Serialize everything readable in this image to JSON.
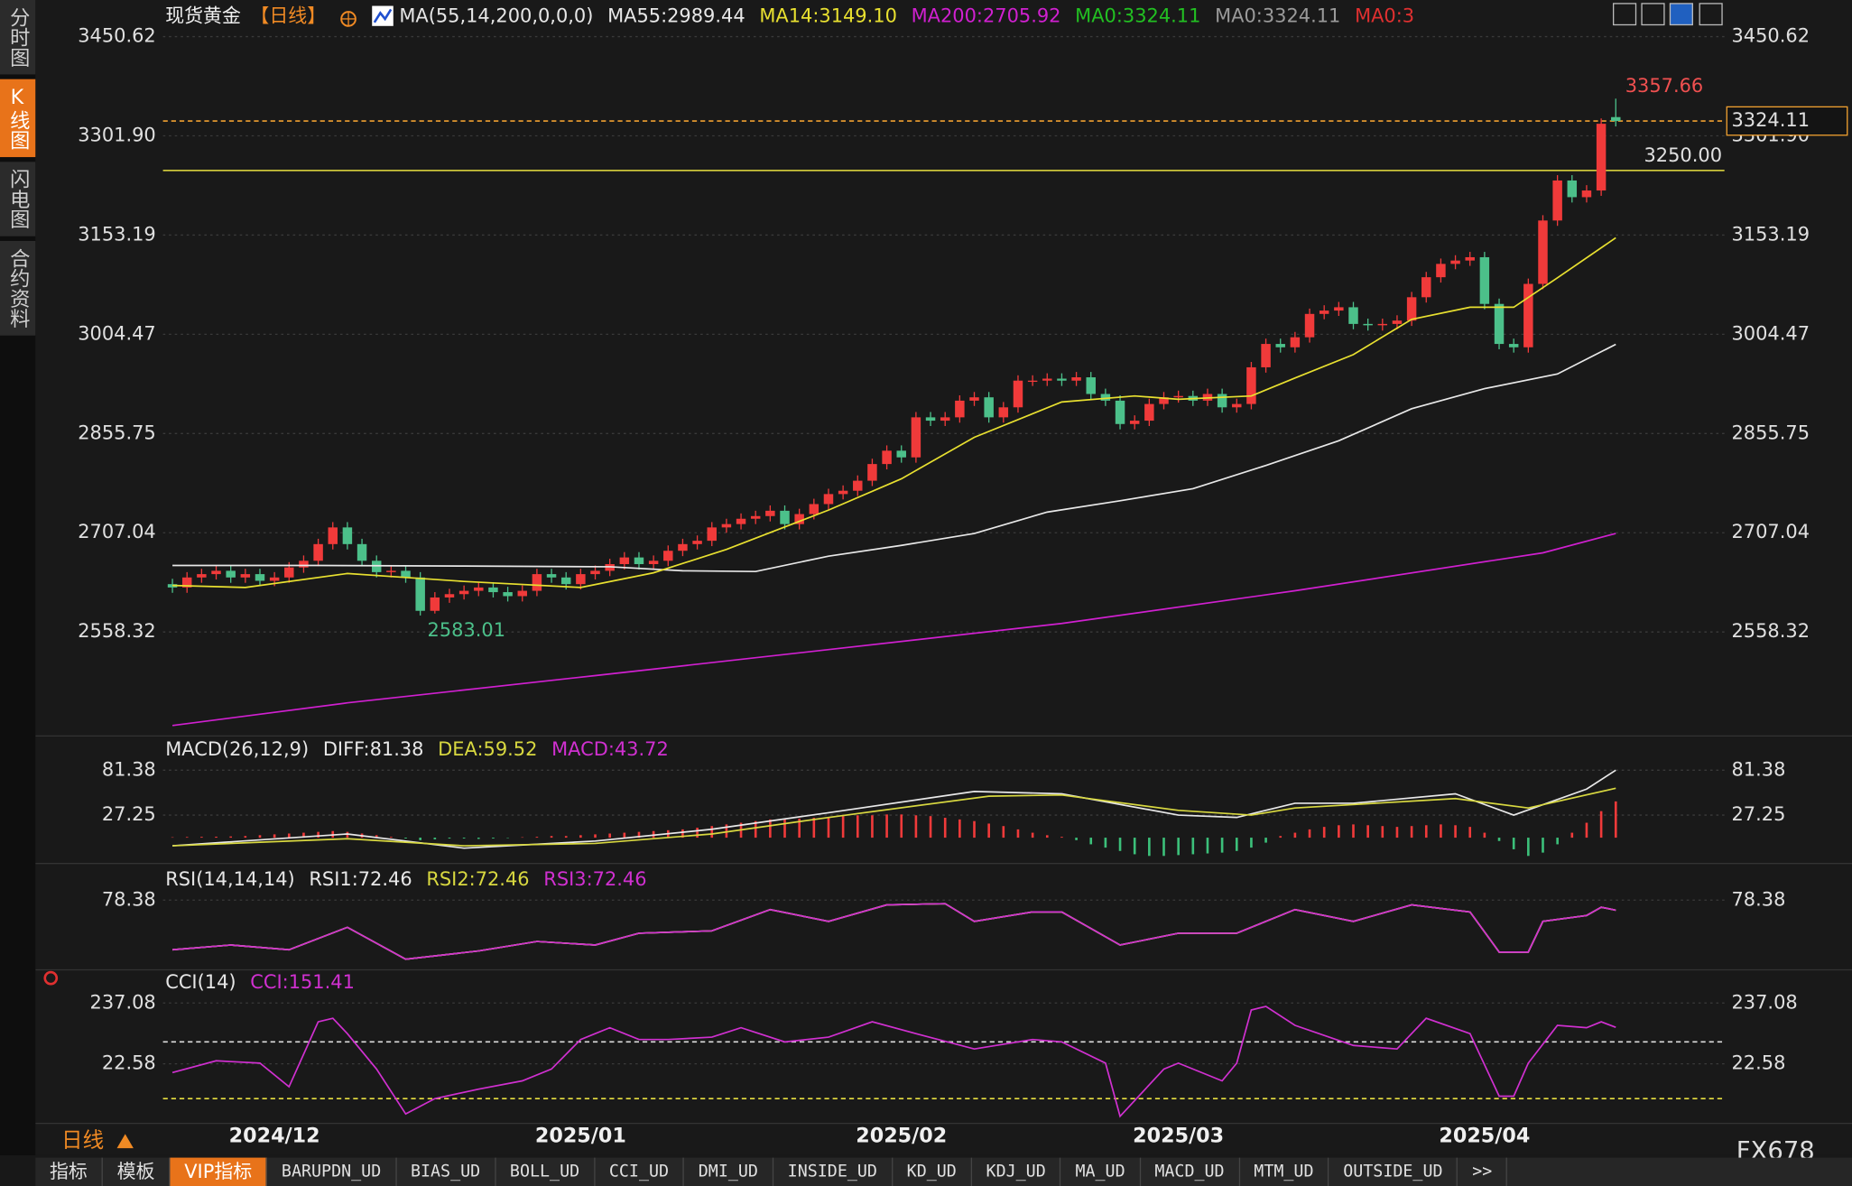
{
  "sidebar": {
    "tabs": [
      "分时图",
      "K线图",
      "闪电图",
      "合约资料"
    ],
    "selected": 1
  },
  "footer": {
    "period": "日线",
    "tabs": [
      "指标",
      "模板",
      "VIP指标",
      "BARUPDN_UD",
      "BIAS_UD",
      "BOLL_UD",
      "CCI_UD",
      "DMI_UD",
      "INSIDE_UD",
      "KD_UD",
      "KDJ_UD",
      "MA_UD",
      "MACD_UD",
      "MTM_UD",
      "OUTSIDE_UD",
      ">>"
    ],
    "selected": 2,
    "brand": "FX678"
  },
  "chart_data": [
    {
      "type": "candlestick",
      "title": "现货黄金",
      "period": "【日线】",
      "indicator": "MA(55,14,200,0,0,0)",
      "categories": [
        null,
        null,
        null,
        null,
        null,
        null,
        null,
        "2024/12",
        null,
        null,
        null,
        null,
        null,
        null,
        null,
        null,
        null,
        null,
        null,
        null,
        null,
        null,
        null,
        null,
        null,
        null,
        null,
        null,
        "2025/01",
        null,
        null,
        null,
        null,
        null,
        null,
        null,
        null,
        null,
        null,
        null,
        null,
        null,
        null,
        null,
        null,
        null,
        null,
        null,
        null,
        null,
        "2025/02",
        null,
        null,
        null,
        null,
        null,
        null,
        null,
        null,
        null,
        null,
        null,
        null,
        null,
        null,
        null,
        null,
        null,
        null,
        "2025/03",
        null,
        null,
        null,
        null,
        null,
        null,
        null,
        null,
        null,
        null,
        null,
        null,
        null,
        null,
        null,
        null,
        null,
        null,
        null,
        null,
        "2025/04",
        null,
        null,
        null,
        null,
        null,
        null,
        null,
        null,
        null
      ],
      "open": [
        2630,
        2625,
        2640,
        2645,
        2650,
        2640,
        2645,
        2635,
        2640,
        2655,
        2665,
        2690,
        2715,
        2690,
        2665,
        2648,
        2650,
        2640,
        2590,
        2610,
        2615,
        2620,
        2625,
        2618,
        2612,
        2620,
        2645,
        2640,
        2630,
        2645,
        2650,
        2660,
        2670,
        2660,
        2665,
        2680,
        2690,
        2695,
        2715,
        2720,
        2728,
        2732,
        2740,
        2720,
        2735,
        2750,
        2765,
        2770,
        2785,
        2810,
        2830,
        2820,
        2880,
        2875,
        2880,
        2905,
        2910,
        2880,
        2895,
        2935,
        2935,
        2938,
        2935,
        2940,
        2915,
        2905,
        2870,
        2875,
        2900,
        2910,
        2912,
        2905,
        2915,
        2895,
        2900,
        2955,
        2990,
        2985,
        3000,
        3035,
        3040,
        3045,
        3020,
        3018,
        3020,
        3025,
        3060,
        3090,
        3110,
        3115,
        3120,
        3050,
        2990,
        2985,
        3080,
        3175,
        3235,
        3210,
        3220,
        3330
      ],
      "high": [
        2638,
        2648,
        2653,
        2658,
        2658,
        2653,
        2653,
        2648,
        2663,
        2673,
        2698,
        2723,
        2723,
        2698,
        2673,
        2658,
        2658,
        2648,
        2618,
        2623,
        2628,
        2633,
        2633,
        2626,
        2628,
        2653,
        2653,
        2648,
        2653,
        2658,
        2668,
        2678,
        2678,
        2673,
        2688,
        2698,
        2703,
        2723,
        2728,
        2736,
        2740,
        2748,
        2748,
        2743,
        2758,
        2773,
        2778,
        2793,
        2818,
        2838,
        2838,
        2888,
        2888,
        2888,
        2913,
        2918,
        2918,
        2903,
        2943,
        2943,
        2946,
        2946,
        2948,
        2948,
        2923,
        2913,
        2883,
        2908,
        2918,
        2920,
        2920,
        2923,
        2923,
        2908,
        2963,
        2998,
        2998,
        3008,
        3043,
        3048,
        3053,
        3053,
        3028,
        3028,
        3033,
        3068,
        3098,
        3118,
        3123,
        3128,
        3128,
        3058,
        2998,
        3088,
        3183,
        3243,
        3243,
        3228,
        3328,
        3357.66
      ],
      "low": [
        2617,
        2617,
        2632,
        2637,
        2632,
        2632,
        2627,
        2627,
        2632,
        2647,
        2657,
        2682,
        2682,
        2657,
        2640,
        2640,
        2632,
        2583.01,
        2586,
        2602,
        2607,
        2612,
        2610,
        2604,
        2604,
        2612,
        2632,
        2622,
        2622,
        2637,
        2642,
        2652,
        2652,
        2652,
        2657,
        2672,
        2682,
        2687,
        2707,
        2712,
        2720,
        2724,
        2712,
        2712,
        2727,
        2742,
        2757,
        2762,
        2777,
        2802,
        2812,
        2812,
        2867,
        2867,
        2872,
        2897,
        2872,
        2872,
        2887,
        2927,
        2927,
        2927,
        2927,
        2907,
        2897,
        2862,
        2862,
        2867,
        2892,
        2902,
        2897,
        2897,
        2887,
        2887,
        2892,
        2947,
        2977,
        2977,
        2992,
        3027,
        3032,
        3012,
        3010,
        3010,
        3012,
        3017,
        3052,
        3082,
        3102,
        3107,
        3042,
        2982,
        2977,
        2977,
        3072,
        3167,
        3202,
        3202,
        3212,
        3316
      ],
      "close": [
        2625,
        2640,
        2645,
        2650,
        2640,
        2645,
        2635,
        2640,
        2655,
        2665,
        2690,
        2715,
        2690,
        2665,
        2648,
        2650,
        2640,
        2590,
        2610,
        2615,
        2620,
        2625,
        2618,
        2612,
        2620,
        2645,
        2640,
        2630,
        2645,
        2650,
        2660,
        2670,
        2660,
        2665,
        2680,
        2690,
        2695,
        2715,
        2720,
        2728,
        2732,
        2740,
        2720,
        2735,
        2750,
        2765,
        2770,
        2785,
        2810,
        2830,
        2820,
        2880,
        2875,
        2880,
        2905,
        2910,
        2880,
        2895,
        2935,
        2935,
        2938,
        2935,
        2940,
        2915,
        2905,
        2870,
        2875,
        2900,
        2910,
        2912,
        2905,
        2915,
        2895,
        2900,
        2955,
        2990,
        2985,
        3000,
        3035,
        3040,
        3045,
        3020,
        3018,
        3020,
        3025,
        3060,
        3090,
        3110,
        3115,
        3120,
        3050,
        2990,
        2985,
        3080,
        3175,
        3235,
        3210,
        3220,
        3320,
        3324.11
      ],
      "up_color": "#f03a3a",
      "down_color": "#4cc08a",
      "series": [
        {
          "name": "MA55:2989.44",
          "color": "#e8e8e8",
          "x": [
            0,
            10,
            20,
            30,
            35,
            40,
            45,
            50,
            55,
            60,
            65,
            70,
            75,
            80,
            85,
            90,
            95,
            99
          ],
          "values": [
            2658,
            2658,
            2657,
            2656,
            2650,
            2649,
            2672,
            2688,
            2706,
            2738,
            2755,
            2773,
            2808,
            2845,
            2893,
            2923,
            2945,
            2989.44
          ]
        },
        {
          "name": "MA14:3149.10",
          "color": "#e8e030",
          "x": [
            0,
            5,
            12,
            20,
            28,
            33,
            38,
            45,
            50,
            55,
            61,
            66,
            69,
            74,
            77,
            81,
            85,
            89,
            92,
            95,
            99
          ],
          "values": [
            2628,
            2625,
            2646,
            2634,
            2625,
            2647,
            2682,
            2741,
            2788,
            2850,
            2903,
            2912,
            2907,
            2912,
            2939,
            2974,
            3027,
            3045,
            3045,
            3089,
            3149.1
          ]
        },
        {
          "name": "MA200:2705.92",
          "color": "#d020d0",
          "x": [
            0,
            12,
            29,
            45,
            61,
            77,
            94,
            99
          ],
          "values": [
            2418,
            2452,
            2493,
            2532,
            2571,
            2620,
            2677,
            2705.92
          ]
        }
      ],
      "legend_extra": [
        {
          "text": "MA0:3324.11",
          "color": "#22c022"
        },
        {
          "text": "MA0:3324.11",
          "color": "#9a9a9a"
        },
        {
          "text": "MA0:3",
          "color": "#e03030"
        }
      ],
      "reference_lines": [
        {
          "value": 3324.11,
          "color": "#f0a030",
          "dash": true,
          "axis_box": true
        },
        {
          "value": 3250,
          "label": "3250.00",
          "color": "#e8e040"
        }
      ],
      "ylim": [
        2404.26,
        3496.65
      ],
      "yticks": [
        3450.62,
        {
          "value": 3301.9,
          "label": "3301.90"
        },
        3153.19,
        3004.47,
        2855.75,
        2707.04,
        2558.32
      ],
      "grid": true
    },
    {
      "type": "line",
      "indicator": "MACD(26,12,9)",
      "up_color": "#f03a3a",
      "down_color": "#3cc07a",
      "series": [
        {
          "name": "DIFF:81.38",
          "color": "#e8e8e8",
          "x": [
            0,
            12,
            20,
            29,
            37,
            45,
            55,
            61,
            69,
            73,
            77,
            81,
            88,
            92,
            97,
            99
          ],
          "values": [
            -9.8,
            4.5,
            -12.6,
            -4.1,
            10.2,
            30.1,
            55.7,
            52.9,
            27.3,
            24.4,
            41.5,
            41.5,
            52.9,
            27.3,
            58.6,
            81.38
          ]
        },
        {
          "name": "DEA:59.52",
          "color": "#d8d840",
          "x": [
            0,
            12,
            20,
            29,
            37,
            45,
            56,
            61,
            69,
            74,
            77,
            88,
            93,
            99
          ],
          "values": [
            -9.8,
            -1.2,
            -9.8,
            -6.9,
            4.5,
            24.4,
            50.0,
            51.5,
            33.0,
            27.3,
            35.8,
            47.2,
            35.8,
            59.52
          ]
        },
        {
          "name": "MACD:43.72",
          "color": "#d030d0",
          "type": "bar",
          "values": [
            0.5,
            0.8,
            1,
            1.2,
            1.5,
            2,
            3,
            4,
            5,
            6,
            7,
            8,
            7,
            5,
            3,
            1,
            -1,
            -3,
            -2,
            -1,
            -1,
            -1.5,
            -1,
            -0.5,
            0.5,
            1,
            2,
            2,
            3,
            4,
            5,
            6,
            7,
            8,
            9,
            10,
            12,
            14,
            16,
            18,
            20,
            22,
            22,
            23,
            24,
            25,
            26,
            27,
            27,
            28,
            28,
            27,
            26,
            24,
            22,
            20,
            17,
            14,
            10,
            6,
            3,
            1,
            -3,
            -8,
            -12,
            -16,
            -20,
            -22,
            -22,
            -21,
            -20,
            -19,
            -18,
            -16,
            -12,
            -6,
            2,
            6,
            10,
            13,
            15,
            16,
            15,
            14,
            13,
            14,
            15,
            16,
            15,
            13,
            6,
            -4,
            -14,
            -22,
            -18,
            -8,
            6,
            18,
            32,
            43.72
          ]
        }
      ],
      "ylim": [
        -29.73,
        119.84
      ],
      "yticks": [
        27.25,
        81.38
      ],
      "grid": true
    },
    {
      "type": "line",
      "indicator": "RSI(14,14,14)",
      "series": [
        {
          "name": "RSI1:72.46",
          "color": "#e8e8e8",
          "x": [
            0,
            4,
            8,
            12,
            16,
            21,
            25,
            29,
            32,
            37,
            41,
            45,
            49,
            53,
            55,
            59,
            61,
            65,
            69,
            73,
            77,
            81,
            85,
            89,
            91,
            93,
            94,
            97,
            98,
            99
          ],
          "values": [
            49,
            51.8,
            49,
            62.3,
            43.4,
            48.3,
            53.9,
            51.8,
            58.8,
            60.2,
            72.8,
            65.8,
            75.6,
            76.3,
            65.8,
            71.4,
            71.4,
            51.8,
            58.8,
            58.8,
            72.8,
            65.8,
            75.6,
            71.4,
            47.6,
            47.6,
            65.8,
            69.3,
            74.2,
            72.46
          ]
        },
        {
          "name": "RSI2:72.46",
          "color": "#d8d840",
          "x": [
            0,
            4,
            8,
            12,
            16,
            21,
            25,
            29,
            32,
            37,
            41,
            45,
            49,
            53,
            55,
            59,
            61,
            65,
            69,
            73,
            77,
            81,
            85,
            89,
            91,
            93,
            94,
            97,
            98,
            99
          ],
          "values": [
            49,
            51.8,
            49,
            62.3,
            43.4,
            48.3,
            53.9,
            51.8,
            58.8,
            60.2,
            72.8,
            65.8,
            75.6,
            76.3,
            65.8,
            71.4,
            71.4,
            51.8,
            58.8,
            58.8,
            72.8,
            65.8,
            75.6,
            71.4,
            47.6,
            47.6,
            65.8,
            69.3,
            74.2,
            72.46
          ]
        },
        {
          "name": "RSI3:72.46",
          "color": "#d030d0",
          "x": [
            0,
            4,
            8,
            12,
            16,
            21,
            25,
            29,
            32,
            37,
            41,
            45,
            49,
            53,
            55,
            59,
            61,
            65,
            69,
            73,
            77,
            81,
            85,
            89,
            91,
            93,
            94,
            97,
            98,
            99
          ],
          "values": [
            49,
            51.8,
            49,
            62.3,
            43.4,
            48.3,
            53.9,
            51.8,
            58.8,
            60.2,
            72.8,
            65.8,
            75.6,
            76.3,
            65.8,
            71.4,
            71.4,
            51.8,
            58.8,
            58.8,
            72.8,
            65.8,
            75.6,
            71.4,
            47.6,
            47.6,
            65.8,
            69.3,
            74.2,
            72.46
          ]
        }
      ],
      "ylim": [
        37.78,
        97.28
      ],
      "yticks": [
        78.38
      ],
      "grid": true
    },
    {
      "type": "line",
      "indicator": "CCI(14)",
      "series": [
        {
          "name": "CCI:151.41",
          "color": "#d030d0",
          "x": [
            0,
            3,
            6,
            8,
            10,
            11,
            12,
            14,
            16,
            18,
            21,
            24,
            26,
            28,
            30,
            32,
            34,
            37,
            39,
            42,
            45,
            48,
            51,
            55,
            59,
            61,
            64,
            65,
            68,
            69,
            72,
            73,
            74,
            75,
            77,
            81,
            84,
            86,
            89,
            91,
            92,
            93,
            95,
            97,
            98,
            99
          ],
          "values": [
            -8.3,
            33.3,
            25,
            -58.3,
            170.8,
            183.3,
            129.2,
            4.2,
            -154.2,
            -100,
            -66.7,
            -37.5,
            4.2,
            108.3,
            150,
            108.3,
            108.3,
            116.7,
            150,
            100,
            116.7,
            170.8,
            129.2,
            75,
            108.3,
            100,
            25,
            -162.5,
            4.2,
            25,
            -37.5,
            25,
            212.5,
            225,
            158.3,
            87.5,
            75,
            183.3,
            129.2,
            -91.7,
            -91.7,
            25,
            158.3,
            150,
            170.8,
            151.41
          ]
        }
      ],
      "reference_lines": [
        {
          "value": 100,
          "color": "#dddddd",
          "dash": true
        },
        {
          "value": -100,
          "color": "#e8e040",
          "dash": true
        }
      ],
      "ylim": [
        -183.3,
        337.5
      ],
      "yticks": [
        22.58,
        237.08
      ],
      "grid": true
    }
  ]
}
